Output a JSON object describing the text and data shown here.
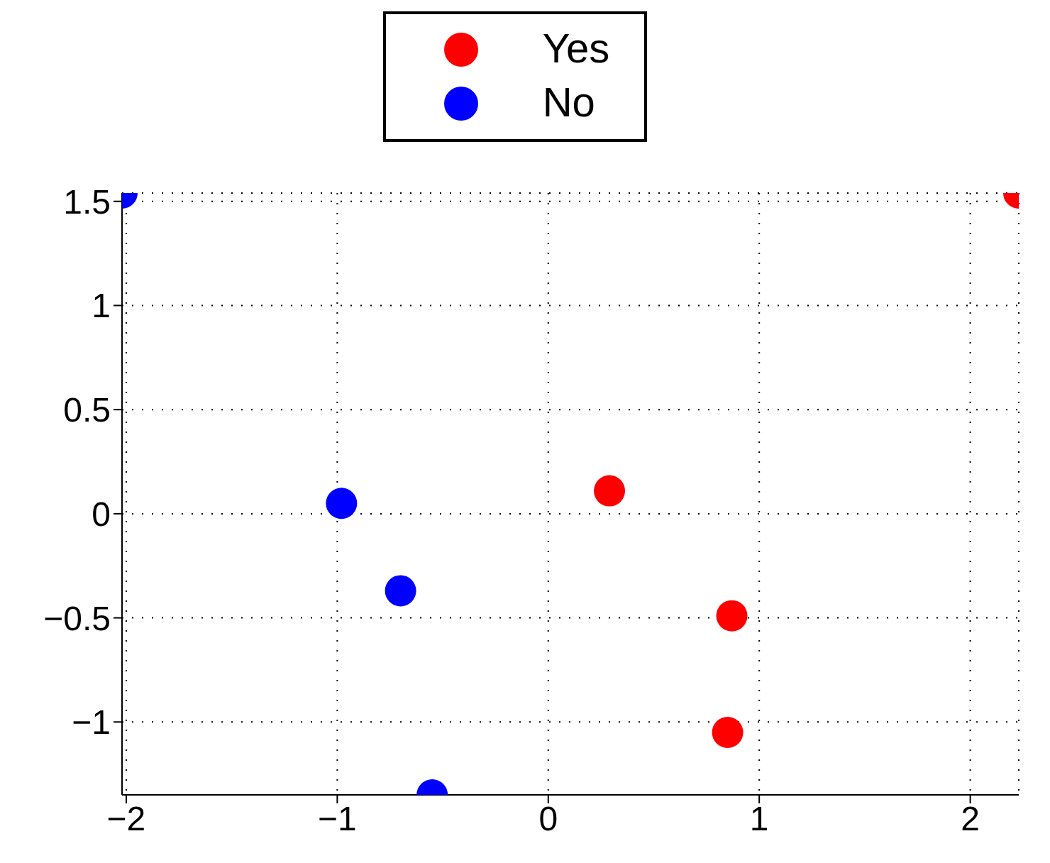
{
  "chart_data": {
    "type": "scatter",
    "series": [
      {
        "name": "Yes",
        "color": "#ff0000",
        "x": [
          2.23,
          0.29,
          0.87,
          0.85
        ],
        "values": [
          1.54,
          0.11,
          -0.49,
          -1.05
        ]
      },
      {
        "name": "No",
        "color": "#0000ff",
        "x": [
          -2.02,
          -0.98,
          -0.7,
          -0.55
        ],
        "values": [
          1.54,
          0.05,
          -0.37,
          -1.35
        ]
      }
    ],
    "xlim": [
      -2.02,
      2.23
    ],
    "xticks": [
      -2,
      -1,
      0,
      1,
      2
    ],
    "ylim": [
      -1.35,
      1.54
    ],
    "yticks": [
      {
        "value": -1,
        "label": "−1"
      },
      {
        "value": -0.5,
        "label": "−0.5"
      },
      0,
      0.5,
      1,
      1.5
    ],
    "grid": true,
    "legend": "top",
    "marker": "circle"
  }
}
